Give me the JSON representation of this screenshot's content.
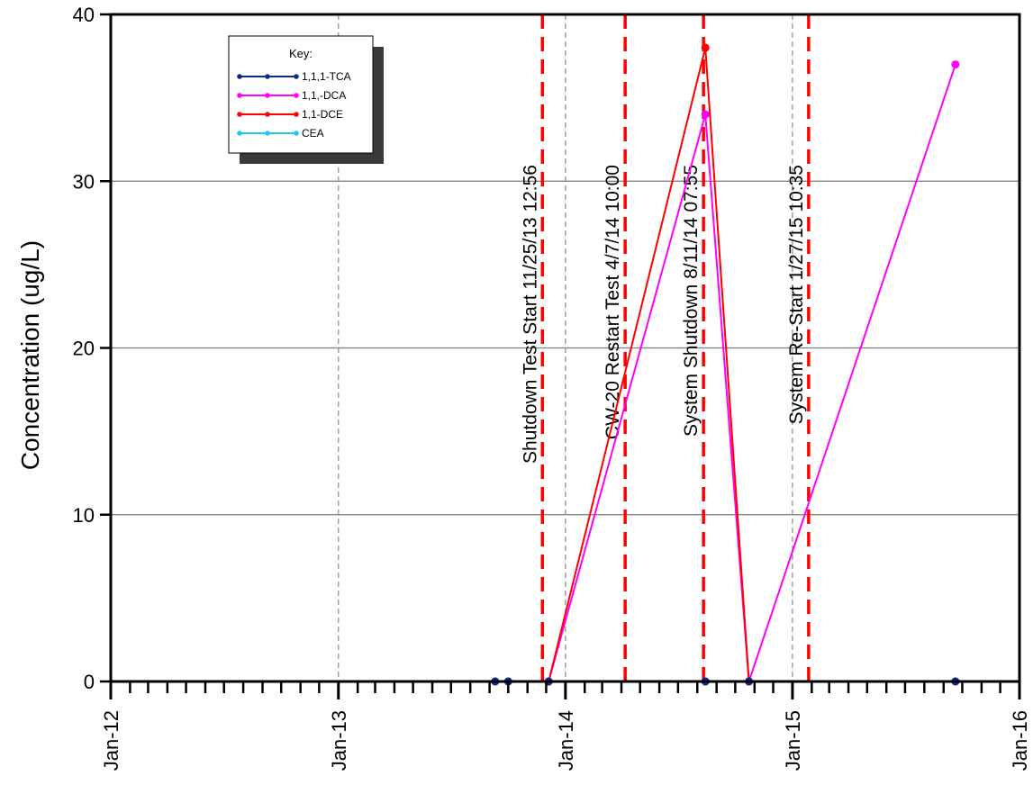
{
  "chart_data": {
    "type": "line",
    "title": "",
    "xlabel": "",
    "ylabel": "Concentration (ug/L)",
    "xlim": [
      "2012-01-01",
      "2016-01-01"
    ],
    "ylim": [
      0,
      40
    ],
    "x_ticks": [
      "Jan-12",
      "Jan-13",
      "Jan-14",
      "Jan-15",
      "Jan-16"
    ],
    "y_ticks": [
      "0",
      "10",
      "20",
      "30",
      "40"
    ],
    "grid": {
      "horizontal": true,
      "vertical_dashed": true
    },
    "legend": {
      "title": "Key:",
      "placement": "top-left"
    },
    "series": [
      {
        "name": "1,1,1-TCA",
        "color": "#0a2d8c",
        "points": [
          {
            "x": "2013-09-10",
            "y": 0
          },
          {
            "x": "2013-10-01",
            "y": 0
          },
          {
            "x": "2013-12-05",
            "y": 0
          },
          {
            "x": "2014-08-14",
            "y": 0
          },
          {
            "x": "2014-10-23",
            "y": 0
          },
          {
            "x": "2015-09-20",
            "y": 0
          }
        ]
      },
      {
        "name": "1,1,-DCA",
        "color": "#ff00ff",
        "points": [
          {
            "x": "2013-12-05",
            "y": 0
          },
          {
            "x": "2014-08-14",
            "y": 34
          },
          {
            "x": "2014-10-23",
            "y": 0
          },
          {
            "x": "2015-09-20",
            "y": 37
          }
        ]
      },
      {
        "name": "1,1-DCE",
        "color": "#ff0000",
        "points": [
          {
            "x": "2013-12-05",
            "y": 0
          },
          {
            "x": "2014-08-14",
            "y": 38
          },
          {
            "x": "2014-10-23",
            "y": 0
          }
        ]
      },
      {
        "name": "CEA",
        "color": "#1ec8f0",
        "points": []
      }
    ],
    "events": [
      {
        "x": "2013-11-25",
        "label": "Shutdown Test Start 11/25/13 12:56"
      },
      {
        "x": "2014-04-07",
        "label": "CW-20 Restart Test 4/7/14 10:00"
      },
      {
        "x": "2014-08-11",
        "label": "System Shutdown 8/11/14 07:55"
      },
      {
        "x": "2015-01-27",
        "label": "System Re-Start 1/27/15 10:35"
      }
    ],
    "event_line_color": "#ff0000"
  }
}
